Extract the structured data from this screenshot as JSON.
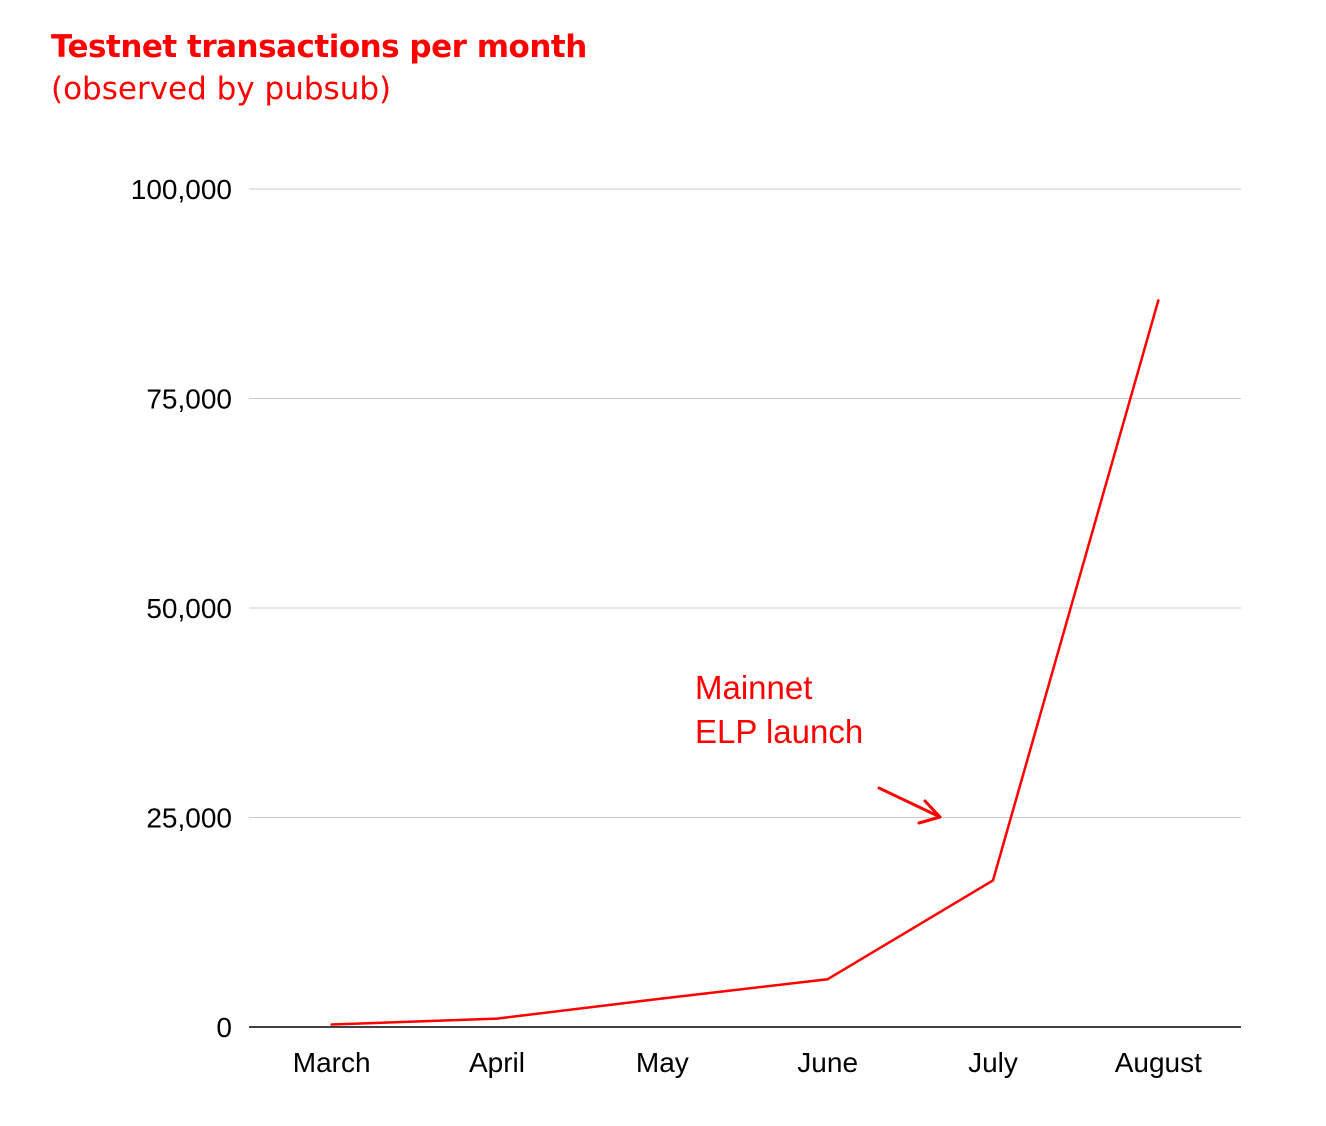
{
  "colors": {
    "accent": "#ff0000",
    "grid": "#cccccc",
    "axis": "#000000",
    "text": "#000000"
  },
  "chart_data": {
    "type": "line",
    "title": "Testnet transactions per month",
    "subtitle": "(observed by pubsub)",
    "xlabel": "",
    "ylabel": "",
    "categories": [
      "March",
      "April",
      "May",
      "June",
      "July",
      "August"
    ],
    "series": [
      {
        "name": "Testnet transactions",
        "values": [
          300,
          1000,
          3400,
          5700,
          17500,
          86700
        ]
      }
    ],
    "ylim": [
      0,
      100000
    ],
    "yticks": [
      0,
      25000,
      50000,
      75000,
      100000
    ],
    "ytick_labels": [
      "0",
      "25,000",
      "50,000",
      "75,000",
      "100,000"
    ],
    "grid": true,
    "legend": "none",
    "annotation": {
      "lines": [
        "Mainnet",
        "ELP launch"
      ],
      "points_to": "July"
    }
  }
}
